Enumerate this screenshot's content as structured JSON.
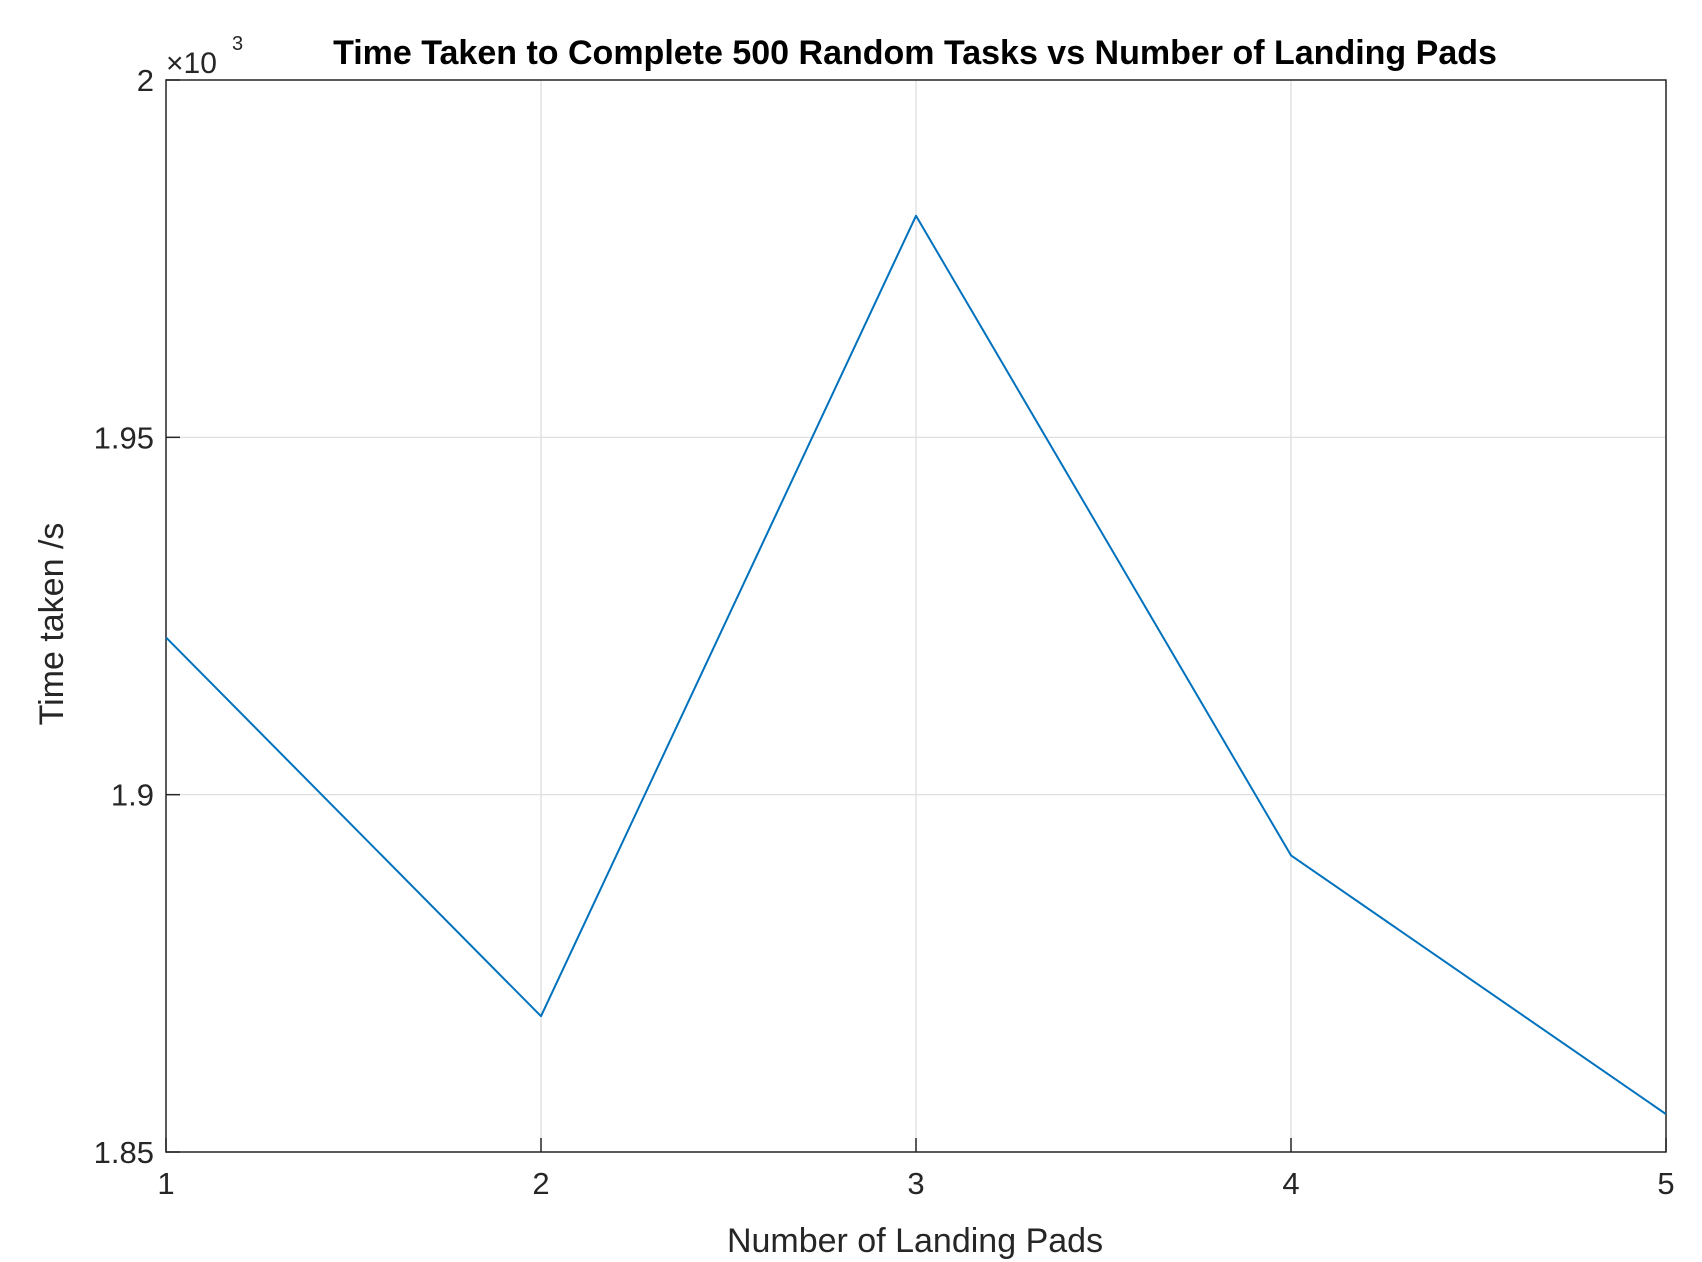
{
  "chart_data": {
    "type": "line",
    "title": "Time Taken to Complete 500 Random Tasks vs Number of Landing Pads",
    "xlabel": "Number of Landing Pads",
    "ylabel": "Time taken /s",
    "y_exponent_label": {
      "times": "×10",
      "power": "3"
    },
    "x": [
      1,
      2,
      3,
      4,
      5
    ],
    "series": [
      {
        "values": [
          1.922,
          1.869,
          1.981,
          1.8915,
          1.8553
        ]
      }
    ],
    "xlim": [
      1,
      5
    ],
    "ylim": [
      1.85,
      2.0
    ],
    "xticks": [
      "1",
      "2",
      "3",
      "4",
      "5"
    ],
    "yticks": [
      "1.85",
      "1.9",
      "1.95",
      "2"
    ],
    "ytick_values": [
      1.85,
      1.9,
      1.95,
      2.0
    ],
    "grid": true,
    "line_color": "#0072BD",
    "grid_color": "#dcdcdc",
    "axis_color": "#262626"
  }
}
